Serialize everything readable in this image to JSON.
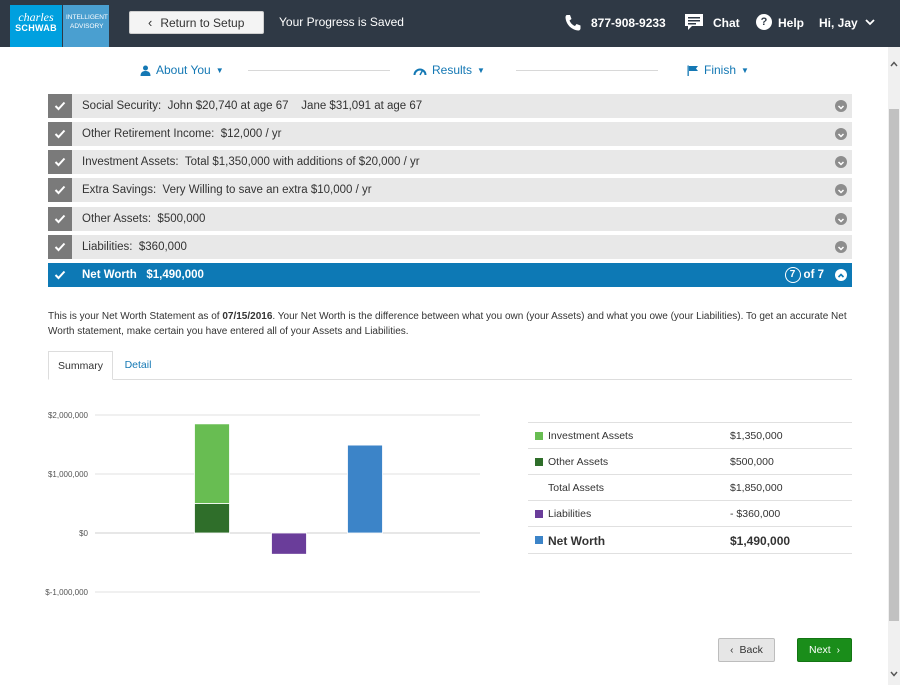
{
  "header": {
    "logo_line1": "charles",
    "logo_line2": "SCHWAB",
    "logo_sub1": "INTELLIGENT",
    "logo_sub2": "ADVISORY",
    "return_label": "Return to Setup",
    "progress_text": "Your Progress is Saved",
    "phone": "877-908-9233",
    "chat_label": "Chat",
    "help_label": "Help",
    "user_label": "Hi, Jay"
  },
  "steps": [
    {
      "label": "About You",
      "icon": "person-icon"
    },
    {
      "label": "Results",
      "icon": "gauge-icon"
    },
    {
      "label": "Finish",
      "icon": "flag-icon"
    }
  ],
  "accordion": [
    {
      "label": "Social Security:",
      "detail": "John $20,740 at age 67    Jane $31,091 at age 67"
    },
    {
      "label": "Other Retirement Income:",
      "detail": "$12,000 / yr"
    },
    {
      "label": "Investment Assets:",
      "detail": "Total $1,350,000 with additions of $20,000 / yr"
    },
    {
      "label": "Extra Savings:",
      "detail": "Very Willing to save an extra $10,000 / yr"
    },
    {
      "label": "Other Assets:",
      "detail": "$500,000"
    },
    {
      "label": "Liabilities:",
      "detail": "$360,000"
    },
    {
      "label": "Net Worth",
      "detail": "$1,490,000"
    }
  ],
  "step_count": {
    "current": "7",
    "suffix": "of 7"
  },
  "statement": {
    "part1": "This is your Net Worth Statement as of ",
    "date": "07/15/2016",
    "part2": ". Your Net Worth is the difference between what you own (your Assets) and what you owe (your Liabilities). To get an accurate Net Worth statement, make certain you have entered all of your Assets and Liabilities."
  },
  "tabs": {
    "summary": "Summary",
    "detail": "Detail"
  },
  "chart_data": {
    "type": "bar",
    "y_ticks": [
      "$2,000,000",
      "$1,000,000",
      "$0",
      "$-1,000,000"
    ],
    "ylim": [
      -1000000,
      2000000
    ],
    "stacks": [
      {
        "segments": [
          {
            "name": "Other Assets",
            "value": 500000,
            "color": "#2f6e2a"
          },
          {
            "name": "Investment Assets",
            "value": 1350000,
            "color": "#68bd52"
          }
        ]
      },
      {
        "segments": [
          {
            "name": "Liabilities",
            "value": -360000,
            "color": "#6a3d9a"
          }
        ]
      },
      {
        "segments": [
          {
            "name": "Net Worth",
            "value": 1490000,
            "color": "#3c84c8"
          }
        ]
      }
    ]
  },
  "summary": [
    {
      "label": "Investment Assets",
      "value": "$1,350,000",
      "color": "#68bd52"
    },
    {
      "label": "Other Assets",
      "value": "$500,000",
      "color": "#2f6e2a"
    },
    {
      "label": "Total Assets",
      "value": "$1,850,000",
      "color": ""
    },
    {
      "label": "Liabilities",
      "value": "- $360,000",
      "color": "#6a3d9a"
    },
    {
      "label": "Net Worth",
      "value": "$1,490,000",
      "color": "#3c84c8"
    }
  ],
  "buttons": {
    "back": "Back",
    "next": "Next"
  }
}
